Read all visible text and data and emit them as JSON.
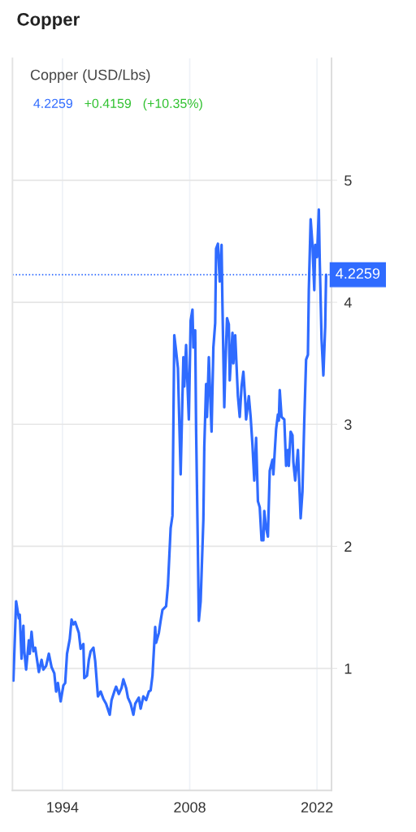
{
  "chart_data": {
    "type": "line",
    "title": "Copper",
    "subtitle": "Copper (USD/Lbs)",
    "annotations": [
      "4.2259",
      "+0.4159",
      "(+10.35%)"
    ],
    "x": [
      1988.6,
      1988.9,
      1989.2,
      1989.3,
      1989.5,
      1989.7,
      1989.8,
      1990.0,
      1990.3,
      1990.4,
      1990.6,
      1990.8,
      1991.0,
      1991.2,
      1991.4,
      1991.7,
      1991.9,
      1992.2,
      1992.5,
      1992.8,
      1993.1,
      1993.3,
      1993.5,
      1993.8,
      1994.1,
      1994.3,
      1994.5,
      1994.8,
      1995.0,
      1995.2,
      1995.4,
      1995.8,
      1996.0,
      1996.3,
      1996.4,
      1996.7,
      1996.9,
      1997.1,
      1997.4,
      1997.6,
      1997.9,
      1998.2,
      1998.5,
      1998.8,
      1999.2,
      1999.4,
      1999.7,
      1999.9,
      2000.2,
      2000.5,
      2000.7,
      2001.0,
      2001.2,
      2001.5,
      2001.8,
      2002.0,
      2002.4,
      2002.6,
      2002.9,
      2003.2,
      2003.5,
      2003.7,
      2003.9,
      2004.2,
      2004.3,
      2004.6,
      2004.8,
      2005.0,
      2005.4,
      2005.6,
      2005.9,
      2006.1,
      2006.2,
      2006.3,
      2006.5,
      2006.7,
      2007.0,
      2007.3,
      2007.4,
      2007.6,
      2007.7,
      2007.9,
      2008.1,
      2008.3,
      2008.4,
      2008.6,
      2008.7,
      2008.9,
      2009.0,
      2009.2,
      2009.5,
      2009.6,
      2009.8,
      2009.9,
      2010.1,
      2010.4,
      2010.6,
      2010.8,
      2010.9,
      2011.1,
      2011.3,
      2011.5,
      2011.6,
      2011.8,
      2011.9,
      2012.1,
      2012.3,
      2012.4,
      2012.7,
      2012.8,
      2013.0,
      2013.3,
      2013.5,
      2013.7,
      2013.9,
      2014.1,
      2014.2,
      2014.5,
      2014.7,
      2014.9,
      2015.1,
      2015.3,
      2015.5,
      2015.7,
      2015.9,
      2016.1,
      2016.2,
      2016.4,
      2016.6,
      2016.8,
      2017.1,
      2017.2,
      2017.5,
      2017.7,
      2017.8,
      2017.9,
      2018.1,
      2018.4,
      2018.6,
      2018.8,
      2018.9,
      2019.1,
      2019.3,
      2019.4,
      2019.6,
      2019.9,
      2020.2,
      2020.4,
      2020.6,
      2020.8,
      2021.0,
      2021.1,
      2021.3,
      2021.5,
      2021.7,
      2021.8,
      2022.0,
      2022.2,
      2022.3,
      2022.5,
      2022.7,
      2022.9,
      2023.0
    ],
    "series": [
      {
        "color": "#2f6bff",
        "values": [
          0.9,
          1.55,
          1.41,
          1.44,
          1.08,
          1.35,
          1.14,
          0.99,
          1.23,
          1.12,
          1.3,
          1.14,
          1.17,
          1.07,
          0.97,
          1.07,
          0.99,
          1.02,
          1.12,
          1.01,
          0.96,
          0.81,
          0.88,
          0.73,
          0.86,
          0.88,
          1.12,
          1.24,
          1.4,
          1.36,
          1.38,
          1.29,
          1.16,
          1.2,
          0.92,
          0.94,
          1.07,
          1.14,
          1.17,
          1.06,
          0.77,
          0.81,
          0.75,
          0.71,
          0.62,
          0.74,
          0.81,
          0.85,
          0.79,
          0.84,
          0.91,
          0.84,
          0.76,
          0.71,
          0.62,
          0.71,
          0.76,
          0.67,
          0.77,
          0.74,
          0.81,
          0.82,
          0.94,
          1.34,
          1.21,
          1.29,
          1.39,
          1.48,
          1.51,
          1.68,
          2.15,
          2.25,
          3.0,
          3.73,
          3.6,
          3.46,
          2.59,
          3.55,
          3.31,
          3.65,
          3.43,
          3.04,
          3.85,
          3.94,
          3.63,
          3.77,
          2.96,
          1.95,
          1.39,
          1.55,
          2.22,
          2.81,
          3.33,
          3.06,
          3.55,
          2.94,
          3.63,
          3.83,
          4.44,
          4.48,
          4.17,
          4.47,
          3.97,
          3.14,
          3.43,
          3.87,
          3.82,
          3.36,
          3.75,
          3.5,
          3.73,
          3.23,
          3.06,
          3.31,
          3.43,
          3.2,
          3.04,
          3.23,
          3.06,
          2.83,
          2.54,
          2.89,
          2.37,
          2.32,
          2.05,
          2.05,
          2.29,
          2.15,
          2.08,
          2.62,
          2.71,
          2.59,
          2.96,
          3.08,
          3.03,
          3.28,
          3.06,
          3.04,
          2.66,
          2.79,
          2.66,
          2.94,
          2.91,
          2.69,
          2.54,
          2.79,
          2.23,
          2.45,
          3.03,
          3.53,
          3.57,
          4.1,
          4.68,
          4.47,
          4.1,
          4.47,
          4.37,
          4.76,
          4.34,
          3.7,
          3.4,
          3.8,
          4.2259
        ]
      }
    ],
    "xlim": [
      1988.5,
      2023.6
    ],
    "xticks": [
      1994,
      2008,
      2022
    ],
    "ylim": [
      0,
      6
    ],
    "yticks": [
      1,
      2,
      3,
      4,
      5
    ],
    "grid": true,
    "line_style": "solid",
    "ref_lines": [
      {
        "axis": "y",
        "value": 4.2259,
        "label": "4.2259",
        "color": "#2f6bff",
        "line_style": "dotted"
      }
    ]
  }
}
